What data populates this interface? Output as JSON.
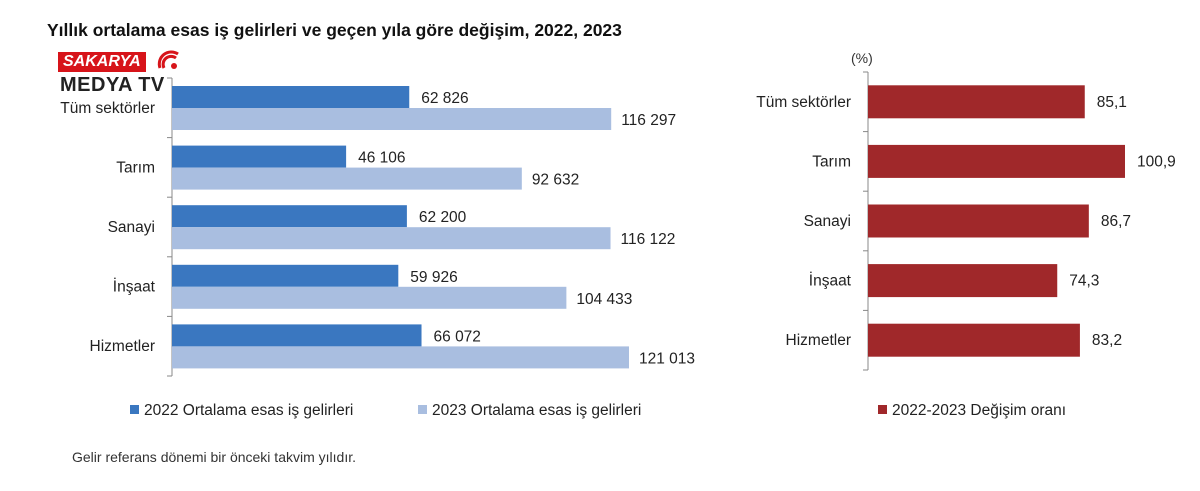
{
  "title": "Yıllık ortalama esas iş gelirleri ve geçen yıla göre değişim, 2022, 2023",
  "logo": {
    "top": "SAKARYA",
    "bottom": "MEDYA TV"
  },
  "footnote": "Gelir referans dönemi bir önceki takvim yılıdır.",
  "colors": {
    "series2022": "#3a77c0",
    "series2023": "#a9bee0",
    "change": "#a0282a",
    "axis": "#888888"
  },
  "chart_data": [
    {
      "type": "bar",
      "orientation": "horizontal",
      "categories": [
        "Tüm sektörler",
        "Tarım",
        "Sanayi",
        "İnşaat",
        "Hizmetler"
      ],
      "series": [
        {
          "name": "2022 Ortalama esas iş gelirleri",
          "values": [
            62826,
            46106,
            62200,
            59926,
            66072
          ],
          "labels": [
            "62 826",
            "46 106",
            "62 200",
            "59 926",
            "66 072"
          ]
        },
        {
          "name": "2023 Ortalama esas iş gelirleri",
          "values": [
            116297,
            92632,
            116122,
            104433,
            121013
          ],
          "labels": [
            "116 297",
            "92 632",
            "116 122",
            "104 433",
            "121 013"
          ]
        }
      ],
      "xlim": [
        0,
        140000
      ],
      "grid": false,
      "legend": "bottom"
    },
    {
      "type": "bar",
      "orientation": "horizontal",
      "unit": "(%)",
      "categories": [
        "Tüm sektörler",
        "Tarım",
        "Sanayi",
        "İnşaat",
        "Hizmetler"
      ],
      "series": [
        {
          "name": "2022-2023 Değişim oranı",
          "values": [
            85.1,
            100.9,
            86.7,
            74.3,
            83.2
          ],
          "labels": [
            "85,1",
            "100,9",
            "86,7",
            "74,3",
            "83,2"
          ]
        }
      ],
      "xlim": [
        0,
        120
      ],
      "grid": false,
      "legend": "bottom"
    }
  ]
}
